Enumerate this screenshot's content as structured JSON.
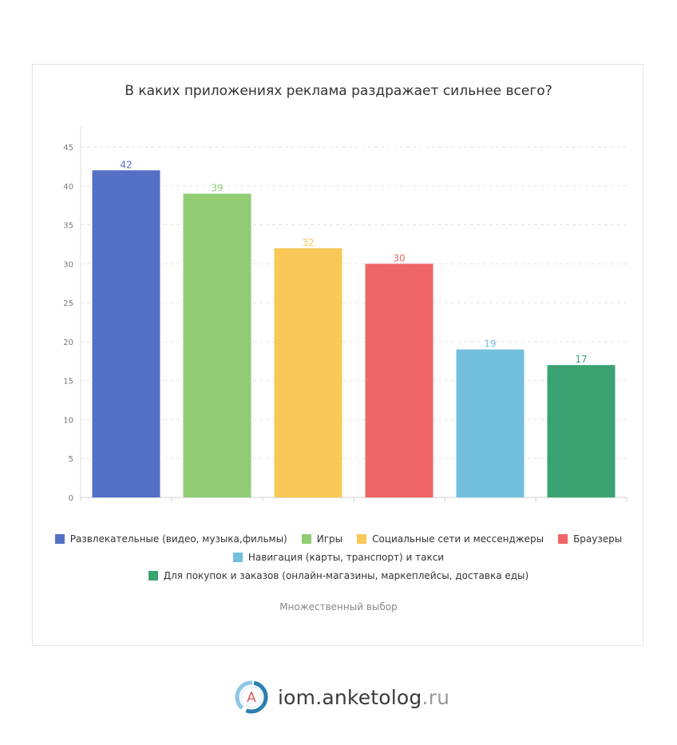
{
  "chart_data": {
    "type": "bar",
    "title": "В каких приложениях реклама раздражает сильнее всего?",
    "categories": [
      "Развлекательные (видео, музыка,фильмы)",
      "Игры",
      "Социальные сети и мессенджеры",
      "Браузеры",
      "Навигация (карты, транспорт) и такси",
      "Для покупок и заказов (онлайн-магазины, маркеплейсы, доставка еды)"
    ],
    "values": [
      42,
      39,
      32,
      30,
      19,
      17
    ],
    "colors": [
      "#5470c6",
      "#91cc75",
      "#fac858",
      "#ee6666",
      "#73c0de",
      "#3ba272"
    ],
    "ylim": [
      0,
      45
    ],
    "yticks": [
      0,
      5,
      10,
      15,
      20,
      25,
      30,
      35,
      40,
      45
    ],
    "grid": true,
    "legend_position": "bottom"
  },
  "note": "Множественный выбор",
  "brand": {
    "name": "iom.anketolog",
    "tld": ".ru",
    "icon_letter": "A",
    "icon": "anketolog-logo-icon"
  }
}
